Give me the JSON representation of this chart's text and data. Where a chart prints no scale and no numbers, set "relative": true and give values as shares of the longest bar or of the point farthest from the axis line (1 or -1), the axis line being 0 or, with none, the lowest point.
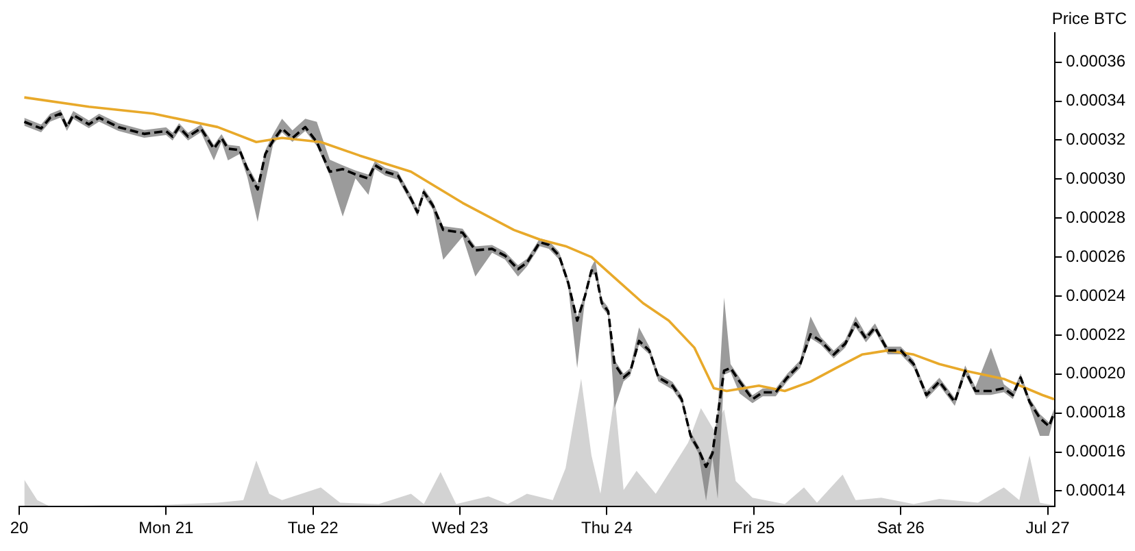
{
  "chart_data": [
    {
      "type": "line",
      "ylabel": "Price BTC",
      "xlim": [
        "--07-20",
        "--07-27T01:12"
      ],
      "xticks": [
        {
          "value": "--07-20",
          "label": "20"
        },
        {
          "value": "--07-21",
          "label": "Mon 21"
        },
        {
          "value": "--07-22",
          "label": "Tue 22"
        },
        {
          "value": "--07-23",
          "label": "Wed 23"
        },
        {
          "value": "--07-24",
          "label": "Thu 24"
        },
        {
          "value": "--07-25",
          "label": "Fri 25"
        },
        {
          "value": "--07-26",
          "label": "Sat 26"
        },
        {
          "value": "--07-27",
          "label": "Jul 27"
        }
      ],
      "ylim": [
        0.000132,
        0.000375
      ],
      "yticks": [
        {
          "value": 0.00014,
          "label": "0.00014"
        },
        {
          "value": 0.00016,
          "label": "0.00016"
        },
        {
          "value": 0.00018,
          "label": "0.00018"
        },
        {
          "value": 0.0002,
          "label": "0.00020"
        },
        {
          "value": 0.00022,
          "label": "0.00022"
        },
        {
          "value": 0.00024,
          "label": "0.00024"
        },
        {
          "value": 0.00026,
          "label": "0.00026"
        },
        {
          "value": 0.00028,
          "label": "0.00028"
        },
        {
          "value": 0.0003,
          "label": "0.00030"
        },
        {
          "value": 0.00032,
          "label": "0.00032"
        },
        {
          "value": 0.00034,
          "label": "0.00034"
        },
        {
          "value": 0.00036,
          "label": "0.00036"
        }
      ],
      "grid": false,
      "legend": false,
      "marker": "none",
      "series": [
        {
          "color": "#000000",
          "line_style": "dashed",
          "x": [
            "--07-20T00:50",
            "--07-20T03:35",
            "--07-20T05:04",
            "--07-20T06:45",
            "--07-20T07:48",
            "--07-20T08:50",
            "--07-20T11:23",
            "--07-20T13:03",
            "--07-20T16:12",
            "--07-20T20:25",
            "--07-21T00:00",
            "--07-21T01:03",
            "--07-21T02:07",
            "--07-21T03:35",
            "--07-21T05:41",
            "--07-21T07:48",
            "--07-21T09:03",
            "--07-21T10:06",
            "--07-21T12:00",
            "--07-21T13:16",
            "--07-21T14:57",
            "--07-21T16:12",
            "--07-21T17:28",
            "--07-21T18:56",
            "--07-21T20:38",
            "--07-21T22:44",
            "--07-22T00:37",
            "--07-22T02:44",
            "--07-22T04:51",
            "--07-22T06:56",
            "--07-22T09:03",
            "--07-22T10:06",
            "--07-22T11:47",
            "--07-22T13:54",
            "--07-22T16:00",
            "--07-22T17:04",
            "--07-22T18:06",
            "--07-22T19:35",
            "--07-22T21:16",
            "--07-23T00:26",
            "--07-23T02:31",
            "--07-23T05:15",
            "--07-23T07:22",
            "--07-23T09:29",
            "--07-23T10:57",
            "--07-23T13:03",
            "--07-23T14:31",
            "--07-23T16:12",
            "--07-23T17:41",
            "--07-23T19:09",
            "--07-23T20:25",
            "--07-23T21:29",
            "--07-23T22:06",
            "--07-23T23:10",
            "--07-24T00:13",
            "--07-24T01:16",
            "--07-24T02:44",
            "--07-24T03:48",
            "--07-24T05:15",
            "--07-24T06:56",
            "--07-24T08:25",
            "--07-24T10:44",
            "--07-24T12:13",
            "--07-24T13:41",
            "--07-24T14:57",
            "--07-24T16:12",
            "--07-24T17:15",
            "--07-24T18:06",
            "--07-24T19:09",
            "--07-24T20:12",
            "--07-24T21:42",
            "--07-24T23:47",
            "--07-25T01:28",
            "--07-25T03:35",
            "--07-25T05:28",
            "--07-25T07:35",
            "--07-25T09:16",
            "--07-25T10:57",
            "--07-25T13:03",
            "--07-25T14:57",
            "--07-25T16:38",
            "--07-25T18:19",
            "--07-25T19:48",
            "--07-25T21:53",
            "--07-26T00:00",
            "--07-26T02:07",
            "--07-26T04:12",
            "--07-26T06:19",
            "--07-26T08:50",
            "--07-26T10:32",
            "--07-26T12:13",
            "--07-26T14:44",
            "--07-26T16:51",
            "--07-26T18:19",
            "--07-26T19:35",
            "--07-26T21:03",
            "--07-26T22:44",
            "--07-27T00:13",
            "--07-27T01:03"
          ],
          "values": [
            0.0003294,
            0.000326,
            0.0003315,
            0.0003336,
            0.0003267,
            0.0003329,
            0.0003281,
            0.0003315,
            0.0003267,
            0.0003232,
            0.0003246,
            0.0003218,
            0.0003267,
            0.0003218,
            0.000326,
            0.0003156,
            0.0003211,
            0.0003156,
            0.0003149,
            0.0003051,
            0.0002947,
            0.0003128,
            0.0003197,
            0.000326,
            0.0003211,
            0.0003267,
            0.000319,
            0.0003038,
            0.0003051,
            0.0003024,
            0.0003003,
            0.0003072,
            0.0003038,
            0.0003017,
            0.0002899,
            0.0002829,
            0.0002933,
            0.0002864,
            0.0002739,
            0.0002725,
            0.0002635,
            0.0002642,
            0.0002607,
            0.0002538,
            0.0002572,
            0.0002676,
            0.0002663,
            0.0002607,
            0.0002468,
            0.0002274,
            0.0002399,
            0.0002531,
            0.0002531,
            0.0002364,
            0.0002322,
            0.0002051,
            0.0001982,
            0.000201,
            0.000217,
            0.0002121,
            0.0001982,
            0.000194,
            0.0001871,
            0.0001683,
            0.0001614,
            0.0001524,
            0.0001593,
            0.0001788,
            0.0002017,
            0.0002031,
            0.0001961,
            0.0001871,
            0.0001906,
            0.0001906,
            0.0001982,
            0.0002051,
            0.0002204,
            0.000217,
            0.00021,
            0.0002156,
            0.000226,
            0.0002183,
            0.0002239,
            0.0002121,
            0.0002121,
            0.0002051,
            0.0001892,
            0.0001961,
            0.0001857,
            0.0002017,
            0.0001913,
            0.0001913,
            0.0001927,
            0.0001892,
            0.0001982,
            0.0001857,
            0.0001774,
            0.0001732,
            0.00018
          ],
          "lower": [
            0.0003274,
            0.000324,
            0.0003295,
            0.0003316,
            0.0003247,
            0.0003309,
            0.0003261,
            0.0003295,
            0.0003247,
            0.0003212,
            0.0003226,
            0.0003198,
            0.0003247,
            0.0003198,
            0.000324,
            0.0003096,
            0.0003191,
            0.0003096,
            0.0003129,
            0.0003011,
            0.0002781,
            0.0002987,
            0.0003177,
            0.000324,
            0.0003191,
            0.0003247,
            0.000317,
            0.0003018,
            0.0002808,
            0.0003004,
            0.0002919,
            0.0003052,
            0.0003018,
            0.0002997,
            0.0002879,
            0.0002809,
            0.0002913,
            0.0002844,
            0.0002586,
            0.0002705,
            0.00025,
            0.0002622,
            0.0002587,
            0.00025,
            0.0002552,
            0.0002656,
            0.0002643,
            0.0002587,
            0.0002448,
            0.0002031,
            0.0002379,
            0.0002511,
            0.0002511,
            0.0002344,
            0.0002302,
            0.0001826,
            0.0001962,
            0.000199,
            0.000215,
            0.0002101,
            0.0001962,
            0.000192,
            0.0001851,
            0.0001663,
            0.0001594,
            0.000135,
            0.0001573,
            0.000136,
            0.0001997,
            0.0002011,
            0.00019,
            0.0001851,
            0.0001886,
            0.0001886,
            0.0001962,
            0.0002031,
            0.0002184,
            0.000215,
            0.000208,
            0.0002136,
            0.000224,
            0.0002163,
            0.0002219,
            0.0002101,
            0.0002101,
            0.0002031,
            0.0001872,
            0.0001941,
            0.0001837,
            0.0001997,
            0.0001893,
            0.0001893,
            0.0001907,
            0.0001872,
            0.0001962,
            0.0001837,
            0.0001683,
            0.0001683,
            0.000178
          ],
          "upper": [
            0.0003314,
            0.000328,
            0.0003335,
            0.0003356,
            0.0003287,
            0.0003349,
            0.0003301,
            0.0003335,
            0.0003287,
            0.0003252,
            0.0003266,
            0.0003238,
            0.0003287,
            0.0003238,
            0.000328,
            0.0003176,
            0.0003231,
            0.0003176,
            0.0003169,
            0.0003071,
            0.0002977,
            0.0003148,
            0.000323,
            0.000331,
            0.000325,
            0.000331,
            0.0003294,
            0.00031,
            0.0003071,
            0.0003044,
            0.0003023,
            0.0003092,
            0.0003058,
            0.0003037,
            0.0002919,
            0.0002849,
            0.0002953,
            0.0002884,
            0.0002759,
            0.0002745,
            0.0002655,
            0.0002662,
            0.0002627,
            0.0002558,
            0.0002592,
            0.0002696,
            0.0002683,
            0.0002627,
            0.0002488,
            0.0002294,
            0.0002419,
            0.0002551,
            0.0002586,
            0.0002384,
            0.0002342,
            0.0002071,
            0.0002002,
            0.000203,
            0.0002239,
            0.0002141,
            0.0002002,
            0.000196,
            0.0001891,
            0.0001703,
            0.0001634,
            0.0001544,
            0.0001613,
            0.0001808,
            0.0002392,
            0.0002051,
            0.0001981,
            0.0001891,
            0.0001926,
            0.0001926,
            0.0002002,
            0.0002071,
            0.0002295,
            0.000219,
            0.000212,
            0.0002176,
            0.0002295,
            0.0002203,
            0.0002259,
            0.0002141,
            0.0002141,
            0.0002071,
            0.0001912,
            0.0001981,
            0.0001877,
            0.0002044,
            0.0001933,
            0.0002135,
            0.0001947,
            0.0001912,
            0.0002002,
            0.0001877,
            0.0001794,
            0.0001752,
            0.000182
          ]
        },
        {
          "color": "#e8a92a",
          "x": [
            "--07-20T00:50",
            "--07-20T11:23",
            "--07-20T21:53",
            "--07-21T08:25",
            "--07-21T14:44",
            "--07-21T18:56",
            "--07-22T01:16",
            "--07-22T07:35",
            "--07-22T16:00",
            "--07-23T00:26",
            "--07-23T08:50",
            "--07-23T13:03",
            "--07-23T17:15",
            "--07-23T21:29",
            "--07-24T01:41",
            "--07-24T05:54",
            "--07-24T10:06",
            "--07-24T14:18",
            "--07-24T17:28",
            "--07-24T19:35",
            "--07-25T00:50",
            "--07-25T05:04",
            "--07-25T09:16",
            "--07-25T13:28",
            "--07-25T17:41",
            "--07-25T21:53",
            "--07-26T02:07",
            "--07-26T06:19",
            "--07-26T10:32",
            "--07-26T16:51",
            "--07-26T23:10",
            "--07-27T01:03"
          ],
          "values": [
            0.0003419,
            0.0003371,
            0.0003336,
            0.0003267,
            0.000319,
            0.0003211,
            0.000319,
            0.0003121,
            0.0003038,
            0.0002878,
            0.0002739,
            0.000269,
            0.0002656,
            0.00026,
            0.0002482,
            0.0002364,
            0.0002274,
            0.0002135,
            0.0001927,
            0.0001913,
            0.000194,
            0.0001913,
            0.0001961,
            0.0002031,
            0.00021,
            0.0002121,
            0.00021,
            0.0002051,
            0.0002017,
            0.0001975,
            0.0001892,
            0.0001871
          ]
        }
      ]
    },
    {
      "type": "area",
      "relative": true,
      "color": "#d3d3d3",
      "xlim": [
        "--07-20",
        "--07-27T01:12"
      ],
      "tick_labels": false,
      "legend": false,
      "grid": false,
      "marker": "none",
      "x": [
        "--07-20T00:50",
        "--07-20T02:57",
        "--07-20T05:04",
        "--07-20T13:28",
        "--07-20T21:53",
        "--07-21T08:25",
        "--07-21T12:37",
        "--07-21T14:44",
        "--07-21T16:51",
        "--07-21T18:56",
        "--07-22T01:16",
        "--07-22T04:25",
        "--07-22T10:44",
        "--07-22T16:00",
        "--07-22T18:06",
        "--07-22T20:50",
        "--07-22T23:23",
        "--07-23T04:38",
        "--07-23T07:48",
        "--07-23T10:57",
        "--07-23T15:10",
        "--07-23T17:15",
        "--07-23T19:48",
        "--07-23T21:29",
        "--07-23T22:57",
        "--07-24T01:16",
        "--07-24T02:44",
        "--07-24T04:51",
        "--07-24T07:59",
        "--07-24T11:10",
        "--07-24T13:16",
        "--07-24T15:22",
        "--07-24T17:28",
        "--07-24T19:09",
        "--07-24T21:03",
        "--07-24T23:47",
        "--07-25T05:04",
        "--07-25T08:12",
        "--07-25T10:19",
        "--07-25T14:31",
        "--07-25T16:38",
        "--07-25T20:50",
        "--07-26T02:07",
        "--07-26T06:19",
        "--07-26T12:37",
        "--07-26T16:51",
        "--07-26T19:22",
        "--07-26T21:03",
        "--07-26T22:44",
        "--07-27T01:03"
      ],
      "values": [
        0.21,
        0.05,
        0,
        0.01,
        0.01,
        0.03,
        0.05,
        0.36,
        0.1,
        0.05,
        0.15,
        0.03,
        0.02,
        0.1,
        0.02,
        0.27,
        0.02,
        0.08,
        0.02,
        0.1,
        0.05,
        0.3,
        1,
        0.4,
        0.1,
        0.87,
        0.13,
        0.28,
        0.1,
        0.34,
        0.5,
        0.77,
        0.6,
        0.76,
        0.2,
        0.07,
        0.02,
        0.15,
        0.03,
        0.25,
        0.05,
        0.07,
        0.02,
        0.06,
        0.03,
        0.15,
        0.05,
        0.4,
        0.03,
        0.01
      ]
    }
  ]
}
